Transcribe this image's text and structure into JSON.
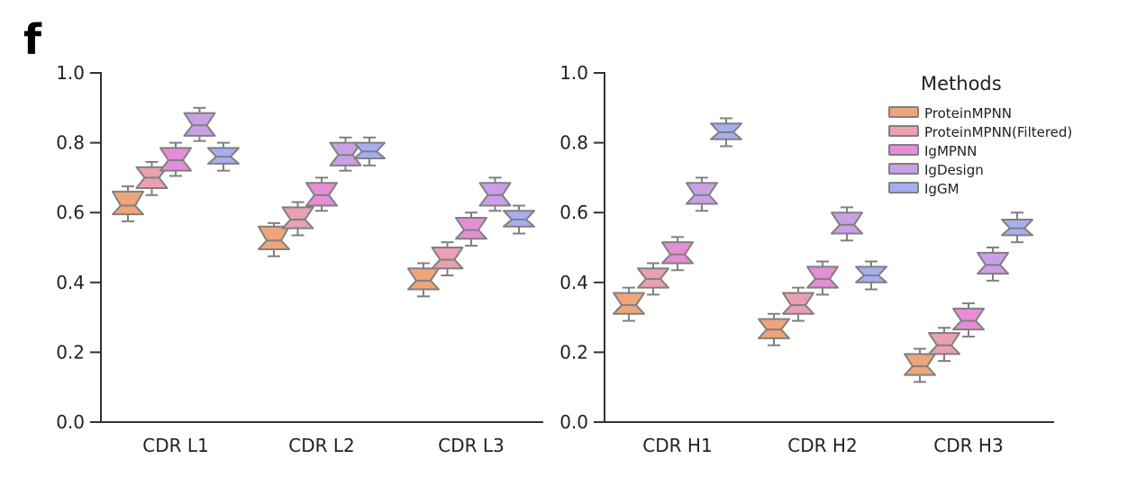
{
  "panel_label": "f",
  "chart_data": [
    {
      "type": "box",
      "title": "",
      "xlabel": "",
      "ylabel": "",
      "ylim": [
        0.0,
        1.0
      ],
      "yticks": [
        "0.0",
        "0.2",
        "0.4",
        "0.6",
        "0.8",
        "1.0"
      ],
      "grid": false,
      "categories": [
        "CDR L1",
        "CDR L2",
        "CDR L3"
      ],
      "series": [
        {
          "name": "ProteinMPNN",
          "color": "#eea57a",
          "median": [
            0.62,
            0.52,
            0.405
          ],
          "q1": [
            0.595,
            0.495,
            0.38
          ],
          "q3": [
            0.66,
            0.56,
            0.44
          ],
          "whisker_low": [
            0.575,
            0.475,
            0.36
          ],
          "whisker_high": [
            0.675,
            0.57,
            0.455
          ]
        },
        {
          "name": "ProteinMPNN(Filtered)",
          "color": "#e9a0b0",
          "median": [
            0.7,
            0.58,
            0.465
          ],
          "q1": [
            0.67,
            0.555,
            0.44
          ],
          "q3": [
            0.73,
            0.615,
            0.5
          ],
          "whisker_low": [
            0.65,
            0.535,
            0.42
          ],
          "whisker_high": [
            0.745,
            0.63,
            0.515
          ]
        },
        {
          "name": "IgMPNN",
          "color": "#e58ed6",
          "median": [
            0.75,
            0.65,
            0.55
          ],
          "q1": [
            0.72,
            0.62,
            0.525
          ],
          "q3": [
            0.785,
            0.685,
            0.585
          ],
          "whisker_low": [
            0.705,
            0.605,
            0.505
          ],
          "whisker_high": [
            0.8,
            0.7,
            0.6
          ]
        },
        {
          "name": "IgDesign",
          "color": "#c9a0e6",
          "median": [
            0.85,
            0.765,
            0.65
          ],
          "q1": [
            0.82,
            0.735,
            0.62
          ],
          "q3": [
            0.885,
            0.8,
            0.685
          ],
          "whisker_low": [
            0.805,
            0.72,
            0.605
          ],
          "whisker_high": [
            0.9,
            0.815,
            0.7
          ]
        },
        {
          "name": "IgGM",
          "color": "#a7aef0",
          "median": [
            0.76,
            0.775,
            0.58
          ],
          "q1": [
            0.74,
            0.755,
            0.56
          ],
          "q3": [
            0.785,
            0.8,
            0.605
          ],
          "whisker_low": [
            0.72,
            0.735,
            0.54
          ],
          "whisker_high": [
            0.8,
            0.815,
            0.62
          ]
        }
      ]
    },
    {
      "type": "box",
      "title": "",
      "xlabel": "",
      "ylabel": "",
      "ylim": [
        0.0,
        1.0
      ],
      "yticks": [
        "0.0",
        "0.2",
        "0.4",
        "0.6",
        "0.8",
        "1.0"
      ],
      "grid": false,
      "categories": [
        "CDR H1",
        "CDR H2",
        "CDR H3"
      ],
      "legend": {
        "title": "Methods",
        "placement": "top-right"
      },
      "series": [
        {
          "name": "ProteinMPNN",
          "color": "#eea57a",
          "median": [
            0.335,
            0.265,
            0.16
          ],
          "q1": [
            0.31,
            0.24,
            0.135
          ],
          "q3": [
            0.37,
            0.295,
            0.195
          ],
          "whisker_low": [
            0.29,
            0.22,
            0.115
          ],
          "whisker_high": [
            0.385,
            0.31,
            0.21
          ]
        },
        {
          "name": "ProteinMPNN(Filtered)",
          "color": "#e9a0b0",
          "median": [
            0.41,
            0.335,
            0.22
          ],
          "q1": [
            0.385,
            0.31,
            0.195
          ],
          "q3": [
            0.44,
            0.37,
            0.255
          ],
          "whisker_low": [
            0.365,
            0.29,
            0.175
          ],
          "whisker_high": [
            0.455,
            0.385,
            0.27
          ]
        },
        {
          "name": "IgMPNN",
          "color": "#e58ed6",
          "median": [
            0.48,
            0.41,
            0.29
          ],
          "q1": [
            0.455,
            0.385,
            0.265
          ],
          "q3": [
            0.515,
            0.445,
            0.325
          ],
          "whisker_low": [
            0.435,
            0.365,
            0.245
          ],
          "whisker_high": [
            0.53,
            0.46,
            0.34
          ]
        },
        {
          "name": "IgDesign",
          "color": "#c9a0e6",
          "median": [
            0.65,
            0.565,
            0.45
          ],
          "q1": [
            0.625,
            0.54,
            0.425
          ],
          "q3": [
            0.685,
            0.6,
            0.485
          ],
          "whisker_low": [
            0.605,
            0.52,
            0.405
          ],
          "whisker_high": [
            0.7,
            0.615,
            0.5
          ]
        },
        {
          "name": "IgGM",
          "color": "#a7aef0",
          "median": [
            0.83,
            0.42,
            0.555
          ],
          "q1": [
            0.81,
            0.4,
            0.535
          ],
          "q3": [
            0.855,
            0.445,
            0.58
          ],
          "whisker_low": [
            0.79,
            0.38,
            0.515
          ],
          "whisker_high": [
            0.87,
            0.46,
            0.6
          ]
        }
      ]
    }
  ]
}
